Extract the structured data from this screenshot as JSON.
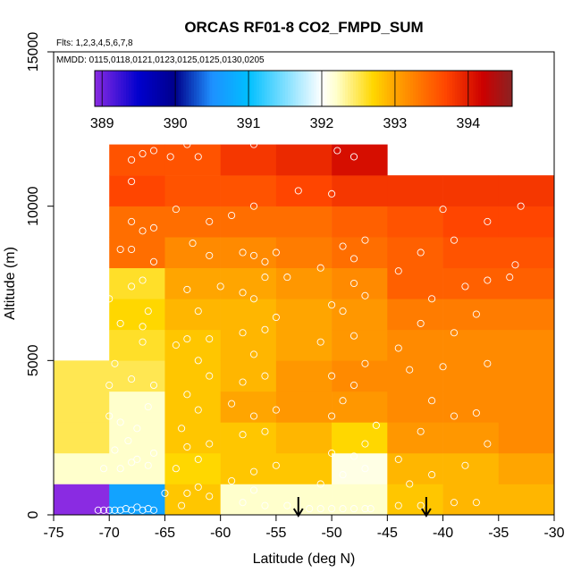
{
  "chart_data": {
    "type": "heatmap",
    "title": "ORCAS RF01-8 CO2_FMPD_SUM",
    "flights_note": "Flts: 1,2,3,4,5,6,7,8",
    "dates_note": "MMDD: 0115,0118,0121,0123,0125,0125,0130,0205",
    "xlabel": "Latitude (deg N)",
    "ylabel": "Altitude (m)",
    "xlim": [
      -75,
      -30
    ],
    "ylim": [
      0,
      15000
    ],
    "x_ticks": [
      -75,
      -70,
      -65,
      -60,
      -55,
      -50,
      -45,
      -40,
      -35,
      -30
    ],
    "y_ticks": [
      0,
      5000,
      10000,
      15000
    ],
    "x_tick_labels": [
      "-75",
      "-70",
      "-65",
      "-60",
      "-55",
      "-50",
      "-45",
      "-40",
      "-35",
      "-30"
    ],
    "y_tick_labels": [
      "0",
      "5000",
      "10000",
      "15000"
    ],
    "colorbar": {
      "min": 388.9,
      "max": 394.6,
      "ticks": [
        389,
        390,
        391,
        392,
        393,
        394
      ],
      "tick_labels": [
        "389",
        "390",
        "391",
        "392",
        "393",
        "394"
      ],
      "colors": [
        "#8a2be2",
        "#0000cd",
        "#00008b",
        "#1e90ff",
        "#00bfff",
        "#ffffff",
        "#ffffcc",
        "#ffd700",
        "#ffa500",
        "#ff4500",
        "#cc0000",
        "#8b2323"
      ],
      "color_stops": [
        388.9,
        389.5,
        390.0,
        390.5,
        391.0,
        392.0,
        392.2,
        392.7,
        393.0,
        393.7,
        394.2,
        394.6
      ]
    },
    "cells_lat_edges": [
      -75,
      -70,
      -65,
      -60,
      -55,
      -50,
      -45,
      -40,
      -35,
      -30
    ],
    "alt_bin_m": 1000,
    "cells": [
      {
        "lat": -75,
        "alt": 0,
        "v": 388.9
      },
      {
        "lat": -75,
        "alt": 1000,
        "v": 392.2
      },
      {
        "lat": -75,
        "alt": 2000,
        "v": 392.5
      },
      {
        "lat": -75,
        "alt": 3000,
        "v": 392.5
      },
      {
        "lat": -75,
        "alt": 4000,
        "v": 392.5
      },
      {
        "lat": -70,
        "alt": 0,
        "v": 390.7
      },
      {
        "lat": -70,
        "alt": 1000,
        "v": 392.2
      },
      {
        "lat": -70,
        "alt": 2000,
        "v": 392.2
      },
      {
        "lat": -70,
        "alt": 3000,
        "v": 392.2
      },
      {
        "lat": -70,
        "alt": 4000,
        "v": 392.5
      },
      {
        "lat": -70,
        "alt": 5000,
        "v": 392.6
      },
      {
        "lat": -70,
        "alt": 6000,
        "v": 392.7
      },
      {
        "lat": -70,
        "alt": 7000,
        "v": 392.6
      },
      {
        "lat": -70,
        "alt": 8000,
        "v": 393.4
      },
      {
        "lat": -70,
        "alt": 9000,
        "v": 393.4
      },
      {
        "lat": -70,
        "alt": 10000,
        "v": 393.7
      },
      {
        "lat": -70,
        "alt": 11000,
        "v": 393.6
      },
      {
        "lat": -65,
        "alt": 0,
        "v": 392.8
      },
      {
        "lat": -65,
        "alt": 1000,
        "v": 392.7
      },
      {
        "lat": -65,
        "alt": 2000,
        "v": 392.8
      },
      {
        "lat": -65,
        "alt": 3000,
        "v": 392.8
      },
      {
        "lat": -65,
        "alt": 4000,
        "v": 392.8
      },
      {
        "lat": -65,
        "alt": 5000,
        "v": 392.8
      },
      {
        "lat": -65,
        "alt": 6000,
        "v": 392.9
      },
      {
        "lat": -65,
        "alt": 7000,
        "v": 393.0
      },
      {
        "lat": -65,
        "alt": 8000,
        "v": 393.2
      },
      {
        "lat": -65,
        "alt": 9000,
        "v": 393.4
      },
      {
        "lat": -65,
        "alt": 10000,
        "v": 393.6
      },
      {
        "lat": -65,
        "alt": 11000,
        "v": 393.6
      },
      {
        "lat": -60,
        "alt": 0,
        "v": 392.2
      },
      {
        "lat": -60,
        "alt": 1000,
        "v": 392.8
      },
      {
        "lat": -60,
        "alt": 2000,
        "v": 392.8
      },
      {
        "lat": -60,
        "alt": 3000,
        "v": 393.0
      },
      {
        "lat": -60,
        "alt": 4000,
        "v": 392.9
      },
      {
        "lat": -60,
        "alt": 5000,
        "v": 392.9
      },
      {
        "lat": -60,
        "alt": 6000,
        "v": 392.9
      },
      {
        "lat": -60,
        "alt": 7000,
        "v": 393.0
      },
      {
        "lat": -60,
        "alt": 8000,
        "v": 393.2
      },
      {
        "lat": -60,
        "alt": 9000,
        "v": 393.4
      },
      {
        "lat": -60,
        "alt": 10000,
        "v": 393.6
      },
      {
        "lat": -60,
        "alt": 11000,
        "v": 393.8
      },
      {
        "lat": -55,
        "alt": 0,
        "v": 392.2
      },
      {
        "lat": -55,
        "alt": 1000,
        "v": 392.8
      },
      {
        "lat": -55,
        "alt": 2000,
        "v": 392.9
      },
      {
        "lat": -55,
        "alt": 3000,
        "v": 393.1
      },
      {
        "lat": -55,
        "alt": 4000,
        "v": 393.1
      },
      {
        "lat": -55,
        "alt": 5000,
        "v": 393.0
      },
      {
        "lat": -55,
        "alt": 6000,
        "v": 393.0
      },
      {
        "lat": -55,
        "alt": 7000,
        "v": 393.1
      },
      {
        "lat": -55,
        "alt": 8000,
        "v": 393.3
      },
      {
        "lat": -55,
        "alt": 9000,
        "v": 393.4
      },
      {
        "lat": -55,
        "alt": 10000,
        "v": 393.7
      },
      {
        "lat": -55,
        "alt": 11000,
        "v": 393.9
      },
      {
        "lat": -50,
        "alt": 0,
        "v": 392.2
      },
      {
        "lat": -50,
        "alt": 1000,
        "v": 392.1
      },
      {
        "lat": -50,
        "alt": 2000,
        "v": 392.7
      },
      {
        "lat": -50,
        "alt": 3000,
        "v": 393.1
      },
      {
        "lat": -50,
        "alt": 4000,
        "v": 393.2
      },
      {
        "lat": -50,
        "alt": 5000,
        "v": 393.1
      },
      {
        "lat": -50,
        "alt": 6000,
        "v": 393.1
      },
      {
        "lat": -50,
        "alt": 7000,
        "v": 393.2
      },
      {
        "lat": -50,
        "alt": 8000,
        "v": 393.4
      },
      {
        "lat": -50,
        "alt": 9000,
        "v": 393.5
      },
      {
        "lat": -50,
        "alt": 10000,
        "v": 393.8
      },
      {
        "lat": -50,
        "alt": 11000,
        "v": 394.1
      },
      {
        "lat": -45,
        "alt": 0,
        "v": 392.8
      },
      {
        "lat": -45,
        "alt": 1000,
        "v": 392.9
      },
      {
        "lat": -45,
        "alt": 2000,
        "v": 393.1
      },
      {
        "lat": -45,
        "alt": 3000,
        "v": 393.2
      },
      {
        "lat": -45,
        "alt": 4000,
        "v": 393.2
      },
      {
        "lat": -45,
        "alt": 5000,
        "v": 393.2
      },
      {
        "lat": -45,
        "alt": 6000,
        "v": 393.3
      },
      {
        "lat": -45,
        "alt": 7000,
        "v": 393.5
      },
      {
        "lat": -45,
        "alt": 8000,
        "v": 393.5
      },
      {
        "lat": -45,
        "alt": 9000,
        "v": 393.6
      },
      {
        "lat": -45,
        "alt": 10000,
        "v": 393.8
      },
      {
        "lat": -40,
        "alt": 0,
        "v": 392.9
      },
      {
        "lat": -40,
        "alt": 1000,
        "v": 392.9
      },
      {
        "lat": -40,
        "alt": 2000,
        "v": 393.1
      },
      {
        "lat": -40,
        "alt": 3000,
        "v": 393.2
      },
      {
        "lat": -40,
        "alt": 4000,
        "v": 393.2
      },
      {
        "lat": -40,
        "alt": 5000,
        "v": 393.2
      },
      {
        "lat": -40,
        "alt": 6000,
        "v": 393.3
      },
      {
        "lat": -40,
        "alt": 7000,
        "v": 393.5
      },
      {
        "lat": -40,
        "alt": 8000,
        "v": 393.6
      },
      {
        "lat": -40,
        "alt": 9000,
        "v": 393.7
      },
      {
        "lat": -40,
        "alt": 10000,
        "v": 393.8
      },
      {
        "lat": -35,
        "alt": 0,
        "v": 392.9
      },
      {
        "lat": -35,
        "alt": 1000,
        "v": 393.0
      },
      {
        "lat": -35,
        "alt": 2000,
        "v": 393.2
      },
      {
        "lat": -35,
        "alt": 3000,
        "v": 393.2
      },
      {
        "lat": -35,
        "alt": 4000,
        "v": 393.2
      },
      {
        "lat": -35,
        "alt": 5000,
        "v": 393.2
      },
      {
        "lat": -35,
        "alt": 6000,
        "v": 393.3
      },
      {
        "lat": -35,
        "alt": 7000,
        "v": 393.5
      },
      {
        "lat": -35,
        "alt": 8000,
        "v": 393.6
      },
      {
        "lat": -35,
        "alt": 9000,
        "v": 393.7
      },
      {
        "lat": -35,
        "alt": 10000,
        "v": 393.8
      }
    ],
    "points": [
      [
        -71,
        150
      ],
      [
        -70.5,
        150
      ],
      [
        -70,
        150
      ],
      [
        -69.5,
        150
      ],
      [
        -69,
        150
      ],
      [
        -68.5,
        200
      ],
      [
        -68,
        150
      ],
      [
        -67.5,
        250
      ],
      [
        -67,
        150
      ],
      [
        -66.5,
        200
      ],
      [
        -66,
        150
      ],
      [
        -65,
        700
      ],
      [
        -70.5,
        1500
      ],
      [
        -69,
        1500
      ],
      [
        -68,
        1700
      ],
      [
        -67.5,
        1800
      ],
      [
        -66.5,
        1600
      ],
      [
        -66,
        2000
      ],
      [
        -69.5,
        2100
      ],
      [
        -68.3,
        2400
      ],
      [
        -70,
        3200
      ],
      [
        -69,
        3000
      ],
      [
        -67.5,
        2800
      ],
      [
        -66.5,
        3500
      ],
      [
        -70,
        4200
      ],
      [
        -68,
        4400
      ],
      [
        -66,
        4200
      ],
      [
        -69.5,
        4900
      ],
      [
        -67,
        5600
      ],
      [
        -69,
        6200
      ],
      [
        -67,
        6100
      ],
      [
        -66.5,
        6600
      ],
      [
        -70,
        7000
      ],
      [
        -68,
        7400
      ],
      [
        -67,
        7600
      ],
      [
        -66,
        8200
      ],
      [
        -69,
        8600
      ],
      [
        -68,
        8600
      ],
      [
        -67,
        9200
      ],
      [
        -68,
        9500
      ],
      [
        -66,
        9300
      ],
      [
        -68,
        10800
      ],
      [
        -68,
        11500
      ],
      [
        -67,
        11700
      ],
      [
        -66,
        11800
      ],
      [
        -63.5,
        300
      ],
      [
        -63,
        700
      ],
      [
        -62,
        900
      ],
      [
        -61,
        600
      ],
      [
        -64,
        1500
      ],
      [
        -62,
        1800
      ],
      [
        -63,
        2200
      ],
      [
        -61,
        2300
      ],
      [
        -63.5,
        2800
      ],
      [
        -62,
        3400
      ],
      [
        -63,
        3900
      ],
      [
        -61,
        4500
      ],
      [
        -62,
        5000
      ],
      [
        -64,
        5500
      ],
      [
        -63,
        5700
      ],
      [
        -61,
        5700
      ],
      [
        -62,
        6600
      ],
      [
        -60,
        7400
      ],
      [
        -63,
        7300
      ],
      [
        -61,
        8400
      ],
      [
        -62.5,
        8800
      ],
      [
        -61,
        9500
      ],
      [
        -64,
        9900
      ],
      [
        -62,
        11600
      ],
      [
        -63,
        12000
      ],
      [
        -64.5,
        11600
      ],
      [
        -58,
        400
      ],
      [
        -56,
        300
      ],
      [
        -54,
        300
      ],
      [
        -57,
        800
      ],
      [
        -59,
        1100
      ],
      [
        -57,
        1400
      ],
      [
        -55,
        1600
      ],
      [
        -58,
        2600
      ],
      [
        -56,
        2700
      ],
      [
        -57,
        3200
      ],
      [
        -59,
        3600
      ],
      [
        -55,
        3400
      ],
      [
        -58,
        4300
      ],
      [
        -56,
        4500
      ],
      [
        -57,
        5200
      ],
      [
        -58,
        5900
      ],
      [
        -56,
        6000
      ],
      [
        -55,
        6400
      ],
      [
        -58,
        7200
      ],
      [
        -57,
        7000
      ],
      [
        -56,
        7700
      ],
      [
        -58,
        8500
      ],
      [
        -57,
        8400
      ],
      [
        -55,
        8500
      ],
      [
        -56,
        8200
      ],
      [
        -54,
        7700
      ],
      [
        -59,
        9700
      ],
      [
        -57,
        10000
      ],
      [
        -53,
        10500
      ],
      [
        -57,
        12000
      ],
      [
        -52,
        200
      ],
      [
        -51,
        200
      ],
      [
        -50,
        200
      ],
      [
        -49,
        200
      ],
      [
        -48,
        200
      ],
      [
        -47,
        200
      ],
      [
        -46.5,
        200
      ],
      [
        -51,
        1000
      ],
      [
        -49,
        1300
      ],
      [
        -47,
        1500
      ],
      [
        -48,
        1900
      ],
      [
        -50,
        2000
      ],
      [
        -47,
        2300
      ],
      [
        -46,
        2900
      ],
      [
        -50,
        3200
      ],
      [
        -49,
        3700
      ],
      [
        -48,
        4200
      ],
      [
        -50,
        4500
      ],
      [
        -47,
        4900
      ],
      [
        -51,
        5600
      ],
      [
        -48,
        5800
      ],
      [
        -49,
        6600
      ],
      [
        -50,
        6800
      ],
      [
        -47,
        7100
      ],
      [
        -48,
        7500
      ],
      [
        -51,
        8000
      ],
      [
        -48,
        8300
      ],
      [
        -49,
        8700
      ],
      [
        -47,
        8900
      ],
      [
        -50,
        10400
      ],
      [
        -48,
        11600
      ],
      [
        -49.5,
        11800
      ],
      [
        -44,
        300
      ],
      [
        -42,
        300
      ],
      [
        -39,
        400
      ],
      [
        -37,
        400
      ],
      [
        -43,
        1000
      ],
      [
        -41,
        1300
      ],
      [
        -38,
        1600
      ],
      [
        -44,
        1800
      ],
      [
        -36,
        2300
      ],
      [
        -42,
        2700
      ],
      [
        -39,
        3200
      ],
      [
        -37,
        3300
      ],
      [
        -41,
        3700
      ],
      [
        -43,
        4700
      ],
      [
        -40,
        4800
      ],
      [
        -36,
        4900
      ],
      [
        -44,
        5400
      ],
      [
        -39,
        5900
      ],
      [
        -42,
        6200
      ],
      [
        -37,
        6500
      ],
      [
        -41,
        7000
      ],
      [
        -38,
        7400
      ],
      [
        -36,
        7600
      ],
      [
        -44,
        7900
      ],
      [
        -42,
        8500
      ],
      [
        -39,
        8900
      ],
      [
        -36,
        9500
      ],
      [
        -40,
        9900
      ],
      [
        -34,
        7700
      ],
      [
        -33.5,
        8100
      ],
      [
        -33,
        10000
      ]
    ],
    "arrows_lat": [
      -53,
      -41.5
    ]
  }
}
